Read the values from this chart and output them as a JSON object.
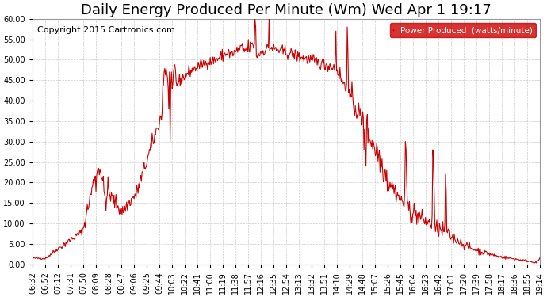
{
  "title": "Daily Energy Produced Per Minute (Wm) Wed Apr 1 19:17",
  "copyright": "Copyright 2015 Cartronics.com",
  "legend_label": "Power Produced  (watts/minute)",
  "legend_bg": "#cc0000",
  "legend_text_color": "#ffffff",
  "line_color": "#cc0000",
  "bg_color": "#ffffff",
  "grid_color": "#cccccc",
  "ylim": [
    0.0,
    60.0
  ],
  "ytick_interval": 5.0,
  "title_fontsize": 13,
  "copyright_fontsize": 8,
  "x_tick_labels": [
    "06:32",
    "06:52",
    "07:12",
    "07:31",
    "07:50",
    "08:09",
    "08:28",
    "08:47",
    "09:06",
    "09:25",
    "09:44",
    "10:03",
    "10:22",
    "10:41",
    "11:00",
    "11:19",
    "11:38",
    "11:57",
    "12:16",
    "12:35",
    "12:54",
    "13:13",
    "13:32",
    "13:51",
    "14:10",
    "14:29",
    "14:48",
    "15:07",
    "15:26",
    "15:45",
    "16:04",
    "16:23",
    "16:42",
    "17:01",
    "17:20",
    "17:39",
    "17:58",
    "18:17",
    "18:36",
    "18:55",
    "19:14"
  ]
}
